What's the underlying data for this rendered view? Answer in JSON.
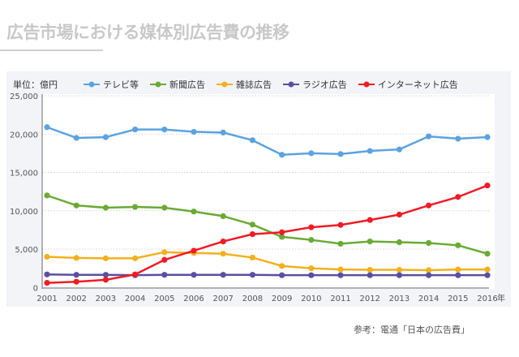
{
  "title": "広告市場における媒体別広告費の推移",
  "source": "参考：電通「日本の広告費」",
  "chart_data": {
    "type": "line",
    "unit_label": "単位：億円",
    "x_suffix": "年",
    "categories": [
      "2001",
      "2002",
      "2003",
      "2004",
      "2005",
      "2006",
      "2007",
      "2008",
      "2009",
      "2010",
      "2011",
      "2012",
      "2013",
      "2014",
      "2015",
      "2016"
    ],
    "ylim": [
      0,
      25000
    ],
    "yticks": [
      0,
      5000,
      10000,
      15000,
      20000,
      25000
    ],
    "ytick_labels": [
      "0",
      "5,000",
      "10,000",
      "15,000",
      "20,000",
      "25,000"
    ],
    "grid": true,
    "legend_position": "top",
    "series": [
      {
        "name": "テレビ等",
        "color": "#5ba3e0",
        "values": [
          20900,
          19500,
          19600,
          20600,
          20600,
          20300,
          20200,
          19200,
          17300,
          17500,
          17400,
          17800,
          18000,
          19700,
          19400,
          19600
        ]
      },
      {
        "name": "新聞広告",
        "color": "#6aaa35",
        "values": [
          12000,
          10700,
          10400,
          10500,
          10400,
          9900,
          9300,
          8200,
          6600,
          6200,
          5700,
          6000,
          5900,
          5800,
          5500,
          4400
        ]
      },
      {
        "name": "雑誌広告",
        "color": "#f2b01e",
        "values": [
          4000,
          3850,
          3800,
          3800,
          4600,
          4500,
          4400,
          3900,
          2800,
          2500,
          2350,
          2300,
          2300,
          2250,
          2350,
          2350
        ]
      },
      {
        "name": "ラジオ広告",
        "color": "#5a4fa0",
        "values": [
          1700,
          1650,
          1650,
          1600,
          1650,
          1650,
          1650,
          1650,
          1600,
          1600,
          1600,
          1600,
          1600,
          1600,
          1600,
          1600
        ]
      },
      {
        "name": "インターネット広告",
        "color": "#ee1c25",
        "values": [
          600,
          750,
          1000,
          1700,
          3600,
          4800,
          6000,
          6950,
          7200,
          7850,
          8150,
          8800,
          9500,
          10700,
          11800,
          13300
        ]
      }
    ]
  }
}
